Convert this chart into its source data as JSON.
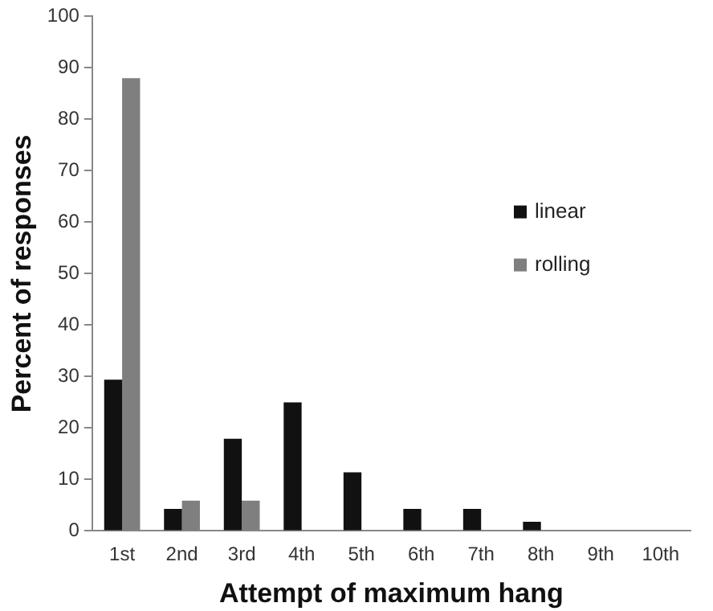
{
  "chart_data": {
    "type": "bar",
    "xlabel": "Attempt of maximum hang",
    "ylabel": "Percent of responses",
    "categories": [
      "1st",
      "2nd",
      "3rd",
      "4th",
      "5th",
      "6th",
      "7th",
      "8th",
      "9th",
      "10th"
    ],
    "series": [
      {
        "name": "linear",
        "color": "#111111",
        "values": [
          29.4,
          4.3,
          17.9,
          25,
          11.4,
          4.3,
          4.3,
          1.8,
          0,
          0
        ]
      },
      {
        "name": "rolling",
        "color": "#7f7f7f",
        "values": [
          88,
          5.9,
          5.9,
          0,
          0,
          0,
          0,
          0,
          0,
          0
        ]
      }
    ],
    "ylim": [
      0,
      100
    ],
    "yticks": [
      0,
      10,
      20,
      30,
      40,
      50,
      60,
      70,
      80,
      90,
      100
    ],
    "grid": false,
    "legend": "right"
  }
}
